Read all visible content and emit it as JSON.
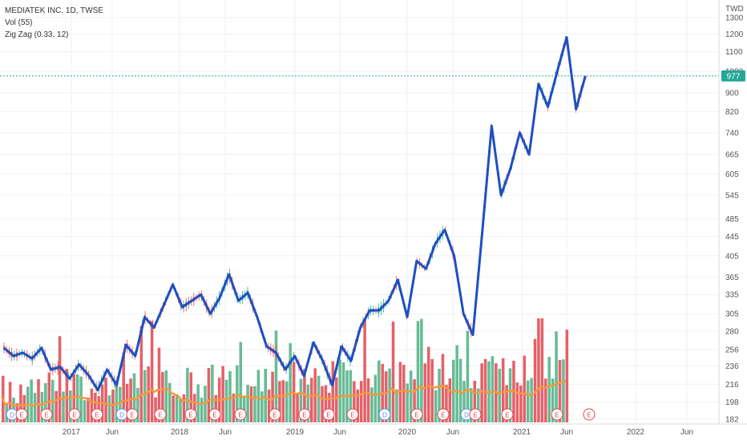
{
  "legend": {
    "symbol": "MEDIATEK INC, 1D, TWSE",
    "volume": "Vol (55)",
    "zigzag": "Zig Zag (0.33, 12)"
  },
  "colors": {
    "zigzag": "#1e4fc2",
    "up": "#26a69a",
    "down": "#ef5350",
    "vol_up": "#4caf82",
    "vol_down": "#e0454f",
    "vol_ma": "#f39a3c",
    "price_line": "#26a69a",
    "grid": "#eef0f4"
  },
  "chart_data": {
    "type": "line",
    "currency": "TWD",
    "last_price": "977",
    "y_ticks": [
      "1300",
      "1200",
      "1100",
      "1000",
      "900",
      "820",
      "740",
      "665",
      "605",
      "545",
      "485",
      "445",
      "405",
      "365",
      "335",
      "305",
      "280",
      "256",
      "236",
      "216",
      "198",
      "182"
    ],
    "x_ticks": [
      "2017",
      "Jun",
      "2018",
      "Jun",
      "2019",
      "Jun",
      "2020",
      "Jun",
      "2021",
      "Jun",
      "2022",
      "Jun"
    ],
    "zigzag": [
      [
        "2016-09",
        258
      ],
      [
        "2016-10",
        248
      ],
      [
        "2016-11",
        252
      ],
      [
        "2016-12",
        245
      ],
      [
        "2017-01",
        258
      ],
      [
        "2017-02",
        232
      ],
      [
        "2017-03",
        235
      ],
      [
        "2017-04",
        222
      ],
      [
        "2017-05",
        238
      ],
      [
        "2017-06",
        226
      ],
      [
        "2017-07",
        210
      ],
      [
        "2017-08",
        232
      ],
      [
        "2017-09",
        215
      ],
      [
        "2017-10",
        262
      ],
      [
        "2017-11",
        248
      ],
      [
        "2017-12",
        300
      ],
      [
        "2018-01",
        285
      ],
      [
        "2018-03",
        352
      ],
      [
        "2018-04",
        315
      ],
      [
        "2018-06",
        335
      ],
      [
        "2018-07",
        305
      ],
      [
        "2018-08",
        330
      ],
      [
        "2018-09",
        370
      ],
      [
        "2018-10",
        325
      ],
      [
        "2018-11",
        338
      ],
      [
        "2018-12",
        300
      ],
      [
        "2019-01",
        260
      ],
      [
        "2019-02",
        252
      ],
      [
        "2019-03",
        232
      ],
      [
        "2019-04",
        248
      ],
      [
        "2019-05",
        225
      ],
      [
        "2019-06",
        265
      ],
      [
        "2019-07",
        242
      ],
      [
        "2019-08",
        215
      ],
      [
        "2019-09",
        260
      ],
      [
        "2019-10",
        242
      ],
      [
        "2019-11",
        285
      ],
      [
        "2019-12",
        310
      ],
      [
        "2020-01",
        310
      ],
      [
        "2020-02",
        325
      ],
      [
        "2020-03",
        360
      ],
      [
        "2020-04",
        300
      ],
      [
        "2020-05",
        395
      ],
      [
        "2020-06",
        380
      ],
      [
        "2020-07",
        430
      ],
      [
        "2020-08",
        460
      ],
      [
        "2020-09",
        405
      ],
      [
        "2020-10",
        305
      ],
      [
        "2020-11",
        275
      ],
      [
        "2020-12",
        455
      ],
      [
        "2021-01",
        765
      ],
      [
        "2021-02",
        545
      ],
      [
        "2021-03",
        620
      ],
      [
        "2021-04",
        740
      ],
      [
        "2021-05",
        665
      ],
      [
        "2021-06",
        940
      ],
      [
        "2021-07",
        840
      ],
      [
        "2021-08",
        1000
      ],
      [
        "2021-09",
        1180
      ],
      [
        "2021-10",
        830
      ],
      [
        "2021-11",
        977
      ]
    ],
    "volume_bars": 160,
    "volume_range": [
      0,
      80
    ]
  }
}
